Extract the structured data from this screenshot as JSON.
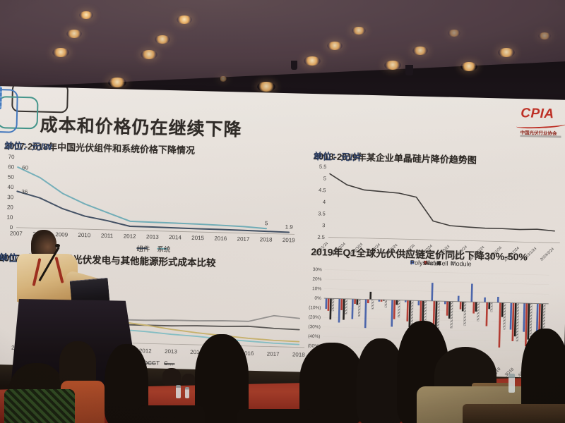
{
  "slide": {
    "title": "成本和价格仍在继续下降",
    "logo": {
      "text": "CPIA",
      "subtext": "中国光伏行业协会",
      "color": "#c0271d"
    }
  },
  "chart_data": [
    {
      "type": "line",
      "title": "2007-2018年中国光伏组件和系统价格下降情况",
      "unit": "单位：元/W",
      "categories": [
        "2007",
        "2008",
        "2009",
        "2010",
        "2011",
        "2012",
        "2013",
        "2014",
        "2015",
        "2016",
        "2017",
        "2018",
        "2019"
      ],
      "series": [
        {
          "name": "组件",
          "color": "#3d4f66",
          "values": [
            36,
            30,
            20,
            13,
            9,
            4,
            3.8,
            3.5,
            3.2,
            3.0,
            2.7,
            2.3,
            1.9
          ]
        },
        {
          "name": "系统",
          "color": "#6fb3c0",
          "values": [
            60,
            50,
            35,
            25,
            17,
            9,
            8.6,
            8.2,
            7.8,
            7.2,
            6.5,
            5,
            null
          ]
        }
      ],
      "point_labels": [
        {
          "series": 1,
          "index": 0,
          "text": "60",
          "pos": "right"
        },
        {
          "series": 0,
          "index": 0,
          "text": "36",
          "pos": "right"
        },
        {
          "series": 1,
          "index": 11,
          "text": "5",
          "pos": "above"
        },
        {
          "series": 0,
          "index": 12,
          "text": "1.9",
          "pos": "above"
        }
      ],
      "ylim": [
        0,
        70
      ],
      "yticks": [
        70,
        60,
        50,
        40,
        30,
        20,
        10,
        0
      ],
      "legend_position": "bottom"
    },
    {
      "type": "line",
      "title": "2018-2019年某企业单晶硅片降价趋势图",
      "unit": "单位：元/片",
      "categories": [
        "2018/1/24",
        "2018/2/24",
        "2018/3/24",
        "2018/4/24",
        "2018/5/24",
        "2018/6/24",
        "2018/7/24",
        "2018/8/24",
        "2018/9/24",
        "2018/10/24",
        "2018/11/24",
        "2018/12/24",
        "2019/1/24",
        "2019/2/24"
      ],
      "series": [
        {
          "name": "",
          "color": "#3a3a3a",
          "values": [
            5.2,
            4.75,
            4.55,
            4.5,
            4.45,
            4.3,
            3.3,
            3.12,
            3.08,
            3.05,
            3.05,
            3.03,
            3.06,
            3.0
          ]
        }
      ],
      "ylim": [
        2.5,
        5.5
      ],
      "yticks": [
        5.5,
        5,
        4.5,
        4,
        3.5,
        3,
        2.5
      ]
    },
    {
      "type": "line",
      "title": "2007-2018年全球光伏发电与其他能源形式成本比较",
      "unit": "单位：美元/MWh",
      "note": "plot area largely occluded by presenter in photo; values estimated, y-axis not visible",
      "categories": [
        "2007",
        "2008",
        "2009",
        "2010",
        "2011",
        "2012",
        "2013",
        "2014",
        "2015",
        "2016",
        "2017",
        "2018"
      ],
      "ylim": [
        0,
        100
      ],
      "yticks": [],
      "series": [
        {
          "name": "",
          "color": "#8f8f8f",
          "values": [
            31,
            31,
            32,
            32,
            33,
            33,
            34,
            34,
            35,
            35,
            44,
            41
          ]
        },
        {
          "name": "",
          "color": "#4f4f4f",
          "values": [
            27,
            27,
            26,
            26,
            26,
            26,
            26,
            27,
            27,
            28,
            26,
            25
          ]
        },
        {
          "name": "",
          "color": "#c7b36a",
          "values": [
            55,
            48,
            41,
            35,
            30,
            26,
            21,
            17,
            14,
            11,
            9,
            8
          ]
        },
        {
          "name": "",
          "color": "#7fc0c9",
          "values": [
            30,
            27,
            24,
            21,
            19,
            17,
            14,
            12,
            9,
            7,
            5,
            4
          ]
        }
      ],
      "legend_fragments": [
        {
          "label": "…nd",
          "color": "#5a5a5a"
        },
        {
          "label": "OCGT",
          "color": "#8a8a8a"
        },
        {
          "label": "C…",
          "color": "#4f4f4f"
        }
      ]
    },
    {
      "type": "bar",
      "title": "2019年Q1全球光伏供应链定价同比下降30%-50%",
      "categories": [
        "1Q15",
        "2Q15",
        "3Q15",
        "4Q15",
        "1Q16",
        "2Q16",
        "3Q16",
        "4Q16",
        "1Q17",
        "2Q17",
        "3Q17",
        "4Q17",
        "1Q18",
        "2Q18",
        "3Q18",
        "4Q18",
        "1Q19"
      ],
      "series": [
        {
          "name": "Polysilicon",
          "color": "#3f5fae",
          "values": [
            -11,
            -25,
            -21,
            -30,
            -2,
            -28,
            -2,
            -5,
            19,
            -3,
            6,
            19,
            5,
            6,
            -28,
            -30,
            -35
          ]
        },
        {
          "name": "Wafer",
          "color": "#b5342c",
          "values": [
            -13,
            -12,
            -5,
            -4,
            -2,
            -20,
            -22,
            -25,
            -28,
            -15,
            -8,
            -12,
            -25,
            -47,
            -40,
            -45,
            -50
          ]
        },
        {
          "name": "Cell",
          "color": "#141414",
          "values": [
            -22,
            -22,
            -6,
            8,
            -1,
            -5,
            -28,
            -30,
            -28,
            -18,
            -10,
            -10,
            -7,
            -15,
            -35,
            -38,
            -42
          ]
        },
        {
          "name": "Module",
          "color": "hatch",
          "values": [
            -13,
            -16,
            -18,
            -10,
            -8,
            -18,
            -30,
            -35,
            -35,
            -28,
            -25,
            -20,
            -10,
            -28,
            -40,
            -35,
            -30
          ]
        }
      ],
      "ylim": [
        -60,
        30
      ],
      "yticks": [
        "30%",
        "20%",
        "10%",
        "0%",
        "(10%)",
        "(20%)",
        "(30%)",
        "(40%)",
        "(50%)",
        "(60%)"
      ],
      "legend_position": "top"
    }
  ]
}
